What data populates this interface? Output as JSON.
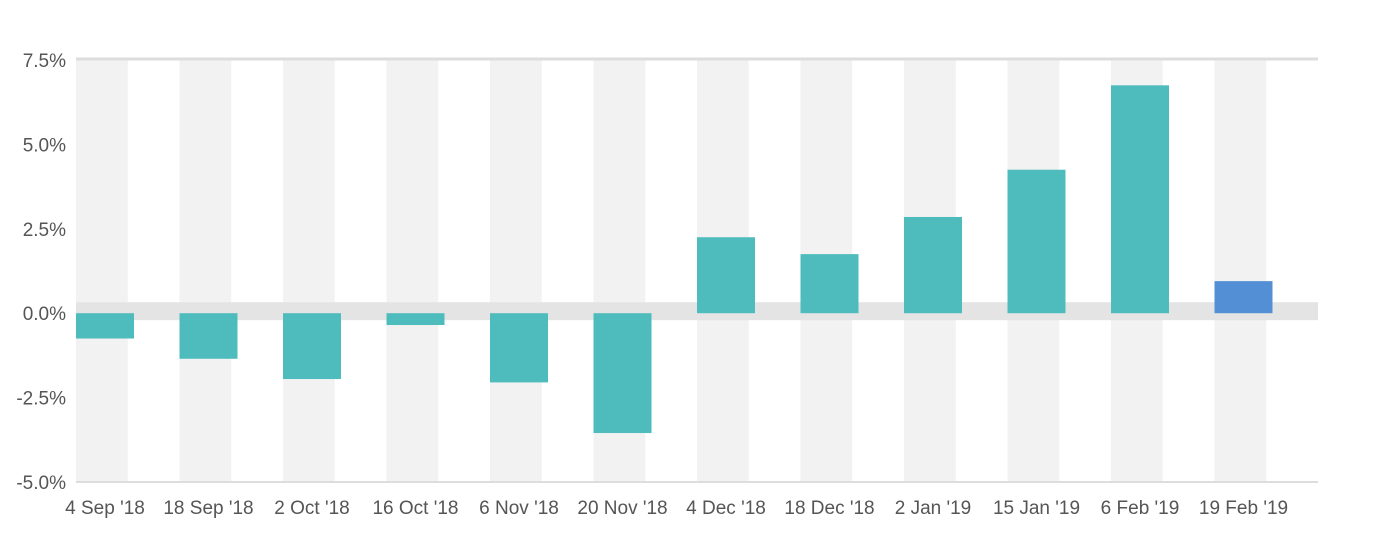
{
  "chart_data": {
    "type": "bar",
    "title": "",
    "xlabel": "",
    "ylabel": "",
    "categories": [
      "4 Sep '18",
      "18 Sep '18",
      "2 Oct '18",
      "16 Oct '18",
      "6 Nov '18",
      "20 Nov '18",
      "4 Dec '18",
      "18 Dec '18",
      "2 Jan '19",
      "15 Jan '19",
      "6 Feb '19",
      "19 Feb '19"
    ],
    "values": [
      -0.75,
      -1.35,
      -1.95,
      -0.35,
      -2.05,
      -3.55,
      2.25,
      1.75,
      2.85,
      4.25,
      6.75,
      0.95
    ],
    "ylim": [
      -5,
      7.5
    ],
    "yticks": [
      -5,
      -2.5,
      0,
      2.5,
      5,
      7.5
    ],
    "ytick_labels": [
      "-5.0%",
      "-2.5%",
      "0.0%",
      "2.5%",
      "5.0%",
      "7.5%"
    ],
    "grid": "alternating-column-bands",
    "legend": "none",
    "colors": {
      "bar": "#4ebbbc",
      "bar_highlight": "#528fd4",
      "band": "#f2f2f2",
      "zero_band": "#e4e4e4",
      "axis_line": "#dddddd",
      "text": "#555555"
    },
    "highlight_index": 11
  }
}
